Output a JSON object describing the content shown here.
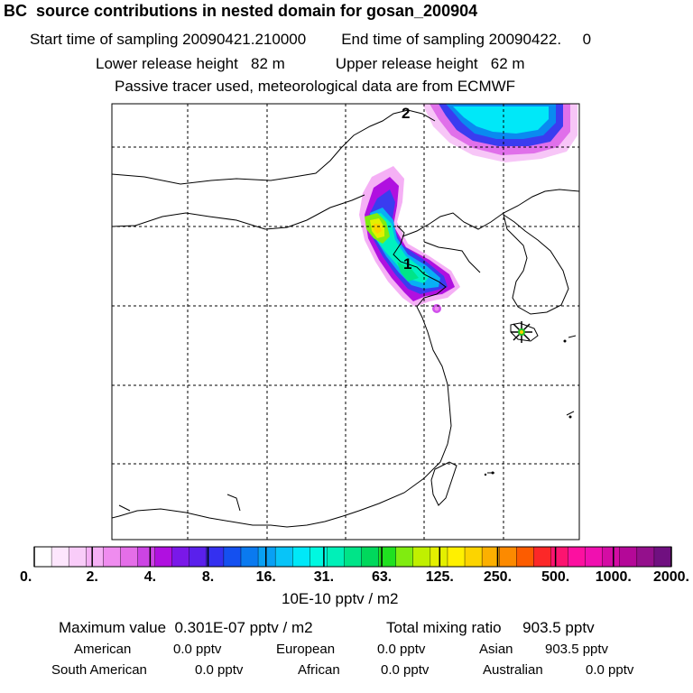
{
  "header": {
    "title": "BC  source contributions in nested domain for gosan_200904",
    "line1_start": "Start time of sampling 20090421.210000",
    "line1_end": "End time of sampling 20090422.     0",
    "line2_lower": "Lower release height   82 m",
    "line2_upper": "Upper release height   62 m",
    "line3": "Passive tracer used, meteorological data are from ECMWF"
  },
  "map": {
    "marker_1": "1",
    "marker_2": "2",
    "station_marker": "receptor-star"
  },
  "legend": {
    "ticks": [
      "0.",
      "2.",
      "4.",
      "8.",
      "16.",
      "31.",
      "63.",
      "125.",
      "250.",
      "500.",
      "1000.",
      "2000."
    ],
    "unit": "10E-10 pptv / m2",
    "colors": [
      "#ffffff",
      "#fde6fd",
      "#f9ccf9",
      "#f5b0f5",
      "#ef8cef",
      "#e46ee8",
      "#cc44e4",
      "#b010e0",
      "#7a18e8",
      "#5a20ec",
      "#3430f0",
      "#1450f0",
      "#0a7af0",
      "#08a0f4",
      "#08c4f8",
      "#00e8f8",
      "#00f8e0",
      "#00f0b8",
      "#00e488",
      "#00d85c",
      "#20e020",
      "#80ec10",
      "#c0f000",
      "#e4f000",
      "#fff000",
      "#fcd400",
      "#fcb000",
      "#fc8a00",
      "#fc5c00",
      "#fc2828",
      "#fc1470",
      "#fc10a0",
      "#f010b0",
      "#d40ca4",
      "#b40898",
      "#94108c",
      "#701080"
    ]
  },
  "stats": {
    "max_label": "Maximum value  0.301E-07 pptv / m2",
    "total_label": "Total mixing ratio     903.5 pptv",
    "american_label": "American",
    "american_value": "0.0 pptv",
    "european_label": "European",
    "european_value": "0.0 pptv",
    "asian_label": "Asian",
    "asian_value": "903.5 pptv",
    "south_american_label": "South American",
    "south_american_value": "0.0 pptv",
    "african_label": "African",
    "african_value": "0.0 pptv",
    "australian_label": "Australian",
    "australian_value": "0.0 pptv"
  }
}
